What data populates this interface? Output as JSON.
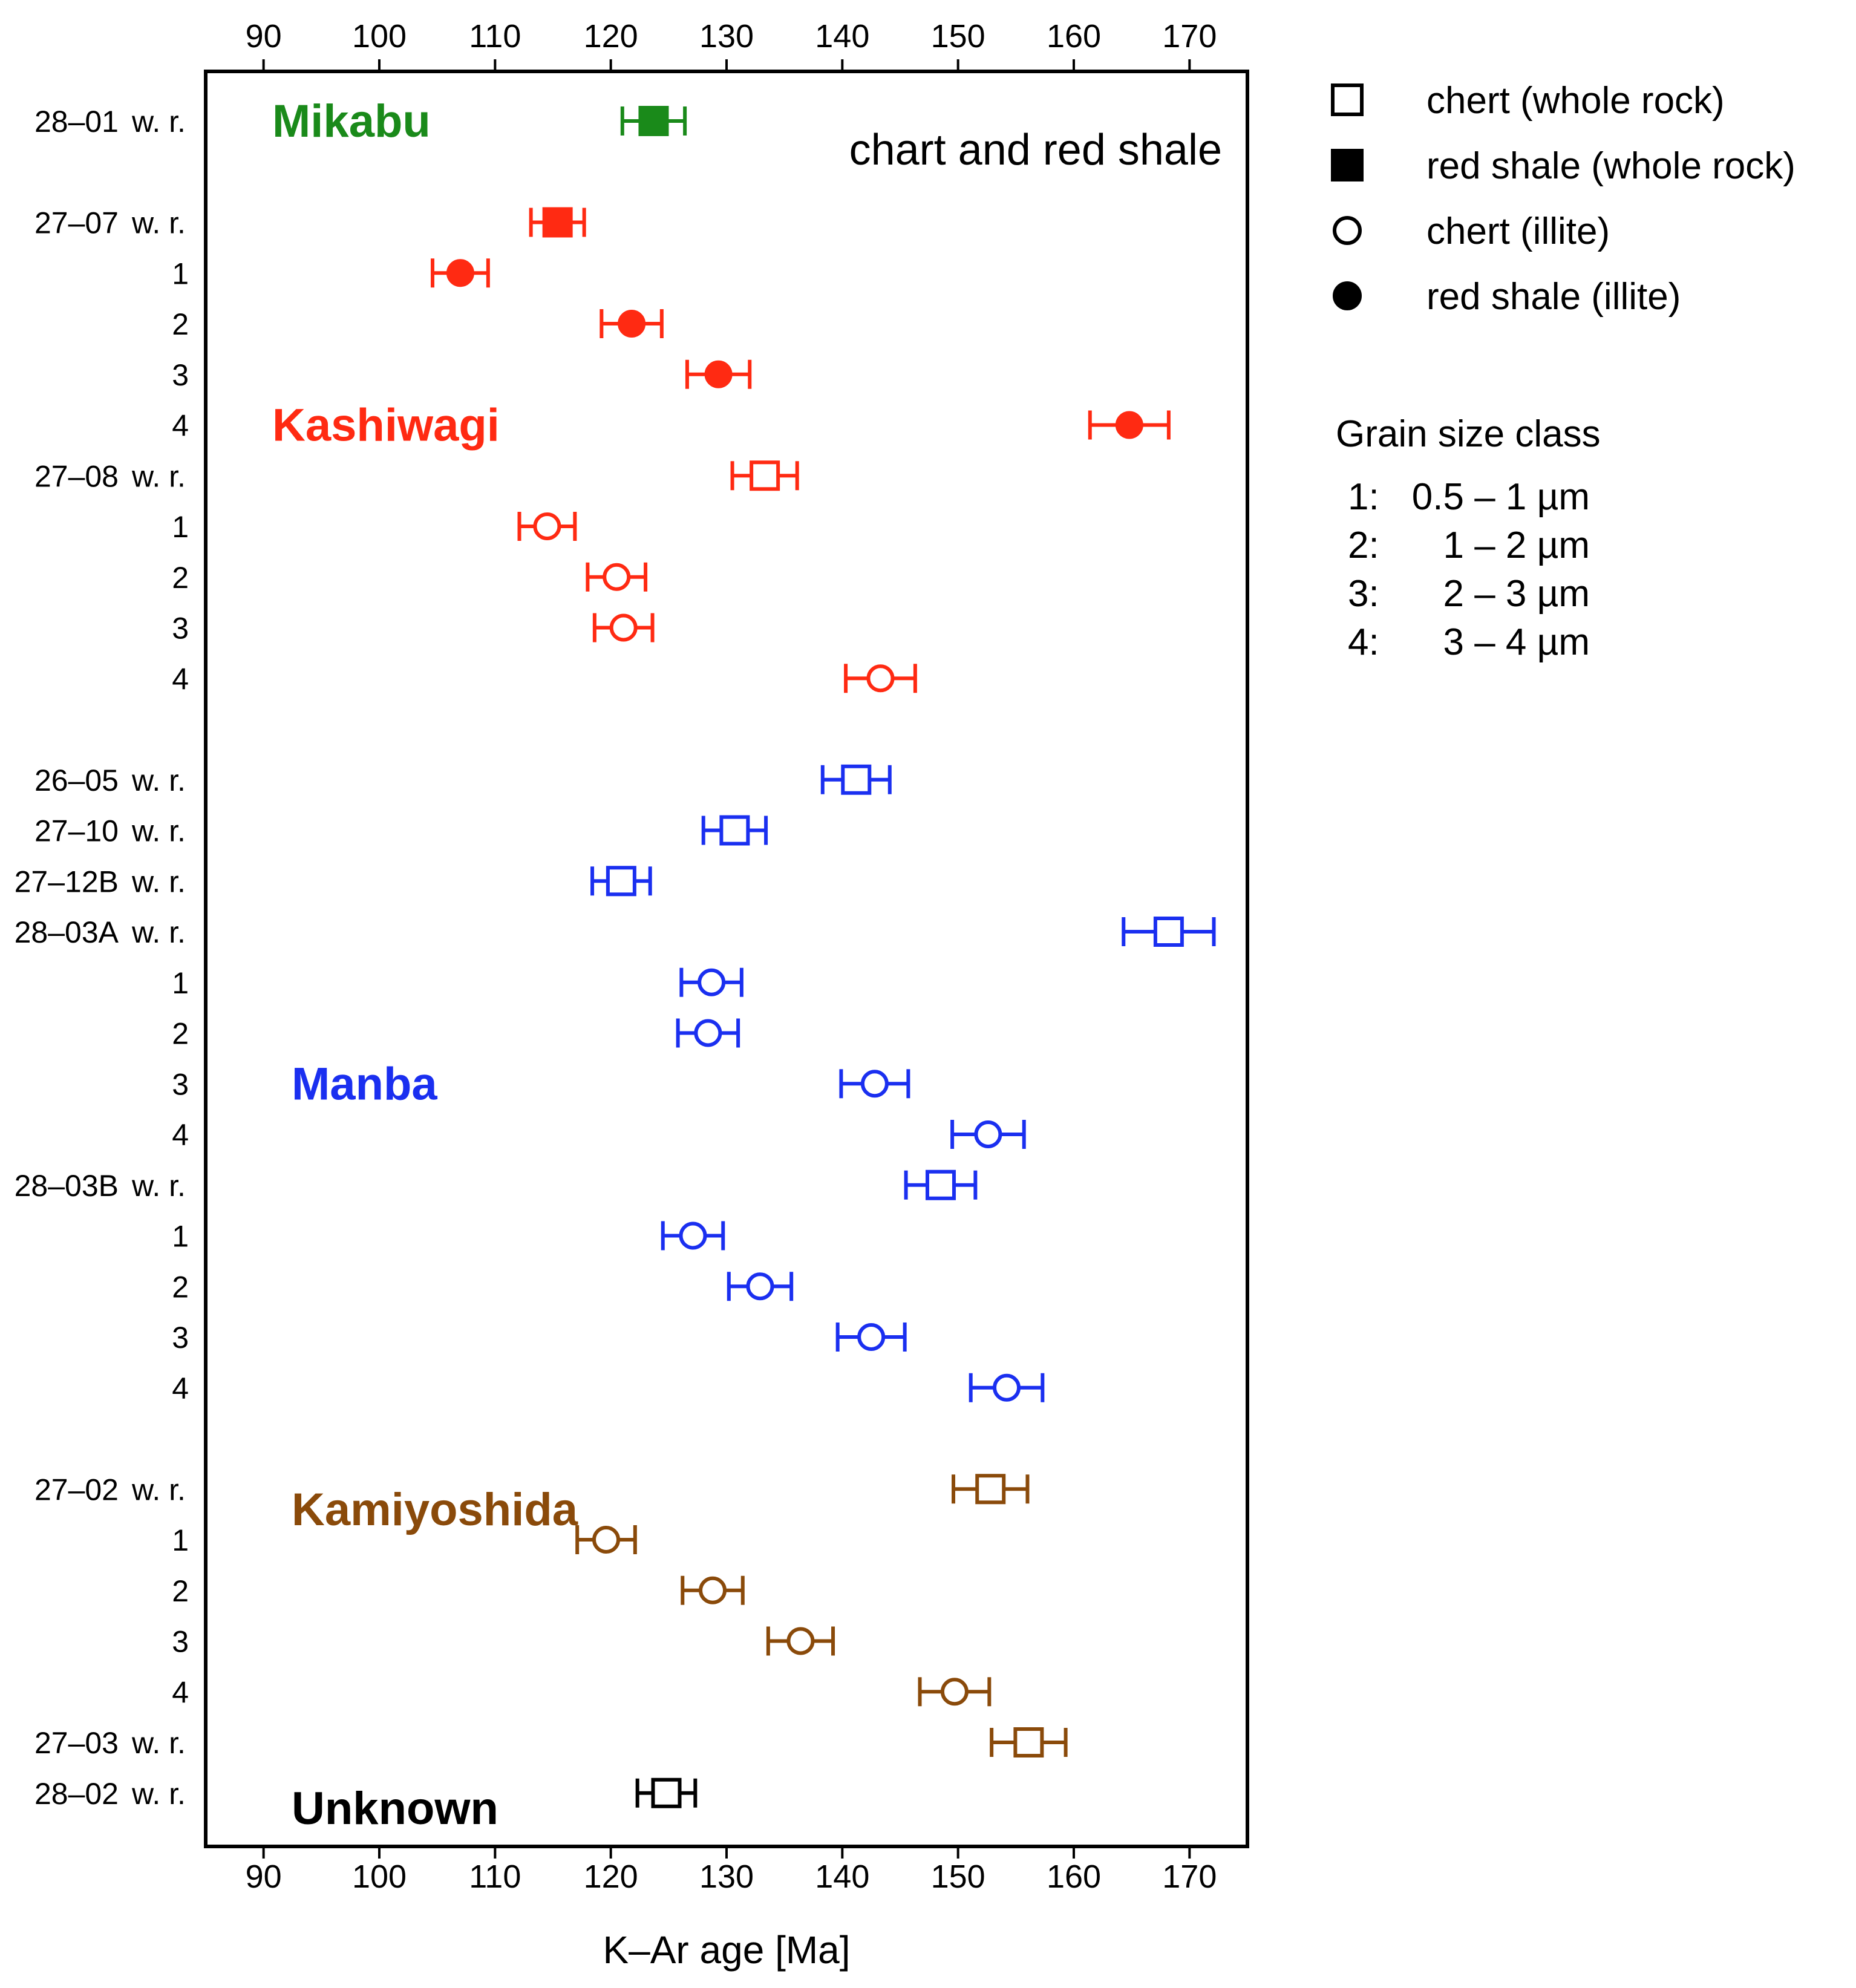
{
  "chart_data": {
    "type": "scatter",
    "title": "chart and red shale",
    "xlabel": "K–Ar age [Ma]",
    "ylabel": "",
    "xlim": [
      85,
      175
    ],
    "xticks": [
      90,
      100,
      110,
      120,
      130,
      140,
      150,
      160,
      170
    ],
    "grid": false,
    "legend_position": "right",
    "legend": [
      {
        "marker": "open-square",
        "label": "chert (whole rock)"
      },
      {
        "marker": "filled-square",
        "label": "red shale (whole rock)"
      },
      {
        "marker": "open-circle",
        "label": "chert (illite)"
      },
      {
        "marker": "filled-circle",
        "label": "red shale (illite)"
      }
    ],
    "grain_size": {
      "title": "Grain size class",
      "classes": [
        {
          "num": "1:",
          "range": "0.5 – 1 µm"
        },
        {
          "num": "2:",
          "range": "1 – 2 µm"
        },
        {
          "num": "3:",
          "range": "2 – 3 µm"
        },
        {
          "num": "4:",
          "range": "3 – 4 µm"
        }
      ]
    },
    "groups": [
      {
        "name": "Mikabu",
        "color": "#1a8a1a",
        "label_row": 0
      },
      {
        "name": "Kashiwagi",
        "color": "#ff2a12",
        "label_row": 6
      },
      {
        "name": "Manba",
        "color": "#1a2ff0",
        "label_row": 19
      },
      {
        "name": "Kamiyoshida",
        "color": "#8a4a0a",
        "label_row": 27.4
      },
      {
        "name": "Unknown",
        "color": "#000000",
        "label_row": 33.3
      }
    ],
    "rows": [
      {
        "row": 0,
        "id": "28–01",
        "suffix": "w. r.",
        "marker": "filled-square",
        "value": 123.7,
        "err": 2.7,
        "color": "#1a8a1a"
      },
      {
        "row": 2,
        "id": "27–07",
        "suffix": "w. r.",
        "marker": "filled-square",
        "value": 115.4,
        "err": 2.3,
        "color": "#ff2a12"
      },
      {
        "row": 3,
        "id": "1",
        "suffix": "",
        "marker": "filled-circle",
        "value": 107.0,
        "err": 2.4,
        "color": "#ff2a12"
      },
      {
        "row": 4,
        "id": "2",
        "suffix": "",
        "marker": "filled-circle",
        "value": 121.8,
        "err": 2.6,
        "color": "#ff2a12"
      },
      {
        "row": 5,
        "id": "3",
        "suffix": "",
        "marker": "filled-circle",
        "value": 129.3,
        "err": 2.7,
        "color": "#ff2a12"
      },
      {
        "row": 6,
        "id": "4",
        "suffix": "",
        "marker": "filled-circle",
        "value": 164.8,
        "err": 3.4,
        "color": "#ff2a12"
      },
      {
        "row": 7,
        "id": "27–08",
        "suffix": "w. r.",
        "marker": "open-square",
        "value": 133.3,
        "err": 2.8,
        "color": "#ff2a12"
      },
      {
        "row": 8,
        "id": "1",
        "suffix": "",
        "marker": "open-circle",
        "value": 114.5,
        "err": 2.4,
        "color": "#ff2a12"
      },
      {
        "row": 9,
        "id": "2",
        "suffix": "",
        "marker": "open-circle",
        "value": 120.5,
        "err": 2.5,
        "color": "#ff2a12"
      },
      {
        "row": 10,
        "id": "3",
        "suffix": "",
        "marker": "open-circle",
        "value": 121.1,
        "err": 2.5,
        "color": "#ff2a12"
      },
      {
        "row": 11,
        "id": "4",
        "suffix": "",
        "marker": "open-circle",
        "value": 143.3,
        "err": 3.0,
        "color": "#ff2a12"
      },
      {
        "row": 13,
        "id": "26–05",
        "suffix": "w. r.",
        "marker": "open-square",
        "value": 141.2,
        "err": 2.9,
        "color": "#1a2ff0"
      },
      {
        "row": 14,
        "id": "27–10",
        "suffix": "w. r.",
        "marker": "open-square",
        "value": 130.7,
        "err": 2.7,
        "color": "#1a2ff0"
      },
      {
        "row": 15,
        "id": "27–12B",
        "suffix": "w. r.",
        "marker": "open-square",
        "value": 120.9,
        "err": 2.5,
        "color": "#1a2ff0"
      },
      {
        "row": 16,
        "id": "28–03A",
        "suffix": "w. r.",
        "marker": "open-square",
        "value": 168.2,
        "err": 3.9,
        "color": "#1a2ff0"
      },
      {
        "row": 17,
        "id": "1",
        "suffix": "",
        "marker": "open-circle",
        "value": 128.7,
        "err": 2.6,
        "color": "#1a2ff0"
      },
      {
        "row": 18,
        "id": "2",
        "suffix": "",
        "marker": "open-circle",
        "value": 128.4,
        "err": 2.6,
        "color": "#1a2ff0"
      },
      {
        "row": 19,
        "id": "3",
        "suffix": "",
        "marker": "open-circle",
        "value": 142.8,
        "err": 2.9,
        "color": "#1a2ff0"
      },
      {
        "row": 20,
        "id": "4",
        "suffix": "",
        "marker": "open-circle",
        "value": 152.6,
        "err": 3.1,
        "color": "#1a2ff0"
      },
      {
        "row": 21,
        "id": "28–03B",
        "suffix": "w. r.",
        "marker": "open-square",
        "value": 148.5,
        "err": 3.0,
        "color": "#1a2ff0"
      },
      {
        "row": 22,
        "id": "1",
        "suffix": "",
        "marker": "open-circle",
        "value": 127.1,
        "err": 2.6,
        "color": "#1a2ff0"
      },
      {
        "row": 23,
        "id": "2",
        "suffix": "",
        "marker": "open-circle",
        "value": 132.9,
        "err": 2.7,
        "color": "#1a2ff0"
      },
      {
        "row": 24,
        "id": "3",
        "suffix": "",
        "marker": "open-circle",
        "value": 142.5,
        "err": 2.9,
        "color": "#1a2ff0"
      },
      {
        "row": 25,
        "id": "4",
        "suffix": "",
        "marker": "open-circle",
        "value": 154.2,
        "err": 3.1,
        "color": "#1a2ff0"
      },
      {
        "row": 27,
        "id": "27–02",
        "suffix": "w. r.",
        "marker": "open-square",
        "value": 152.8,
        "err": 3.2,
        "color": "#8a4a0a"
      },
      {
        "row": 28,
        "id": "1",
        "suffix": "",
        "marker": "open-circle",
        "value": 119.6,
        "err": 2.5,
        "color": "#8a4a0a"
      },
      {
        "row": 29,
        "id": "2",
        "suffix": "",
        "marker": "open-circle",
        "value": 128.8,
        "err": 2.6,
        "color": "#8a4a0a"
      },
      {
        "row": 30,
        "id": "3",
        "suffix": "",
        "marker": "open-circle",
        "value": 136.4,
        "err": 2.8,
        "color": "#8a4a0a"
      },
      {
        "row": 31,
        "id": "4",
        "suffix": "",
        "marker": "open-circle",
        "value": 149.7,
        "err": 3.0,
        "color": "#8a4a0a"
      },
      {
        "row": 32,
        "id": "27–03",
        "suffix": "w. r.",
        "marker": "open-square",
        "value": 156.1,
        "err": 3.2,
        "color": "#8a4a0a"
      },
      {
        "row": 33,
        "id": "28–02",
        "suffix": "w. r.",
        "marker": "open-square",
        "value": 124.8,
        "err": 2.5,
        "color": "#000000"
      }
    ]
  }
}
